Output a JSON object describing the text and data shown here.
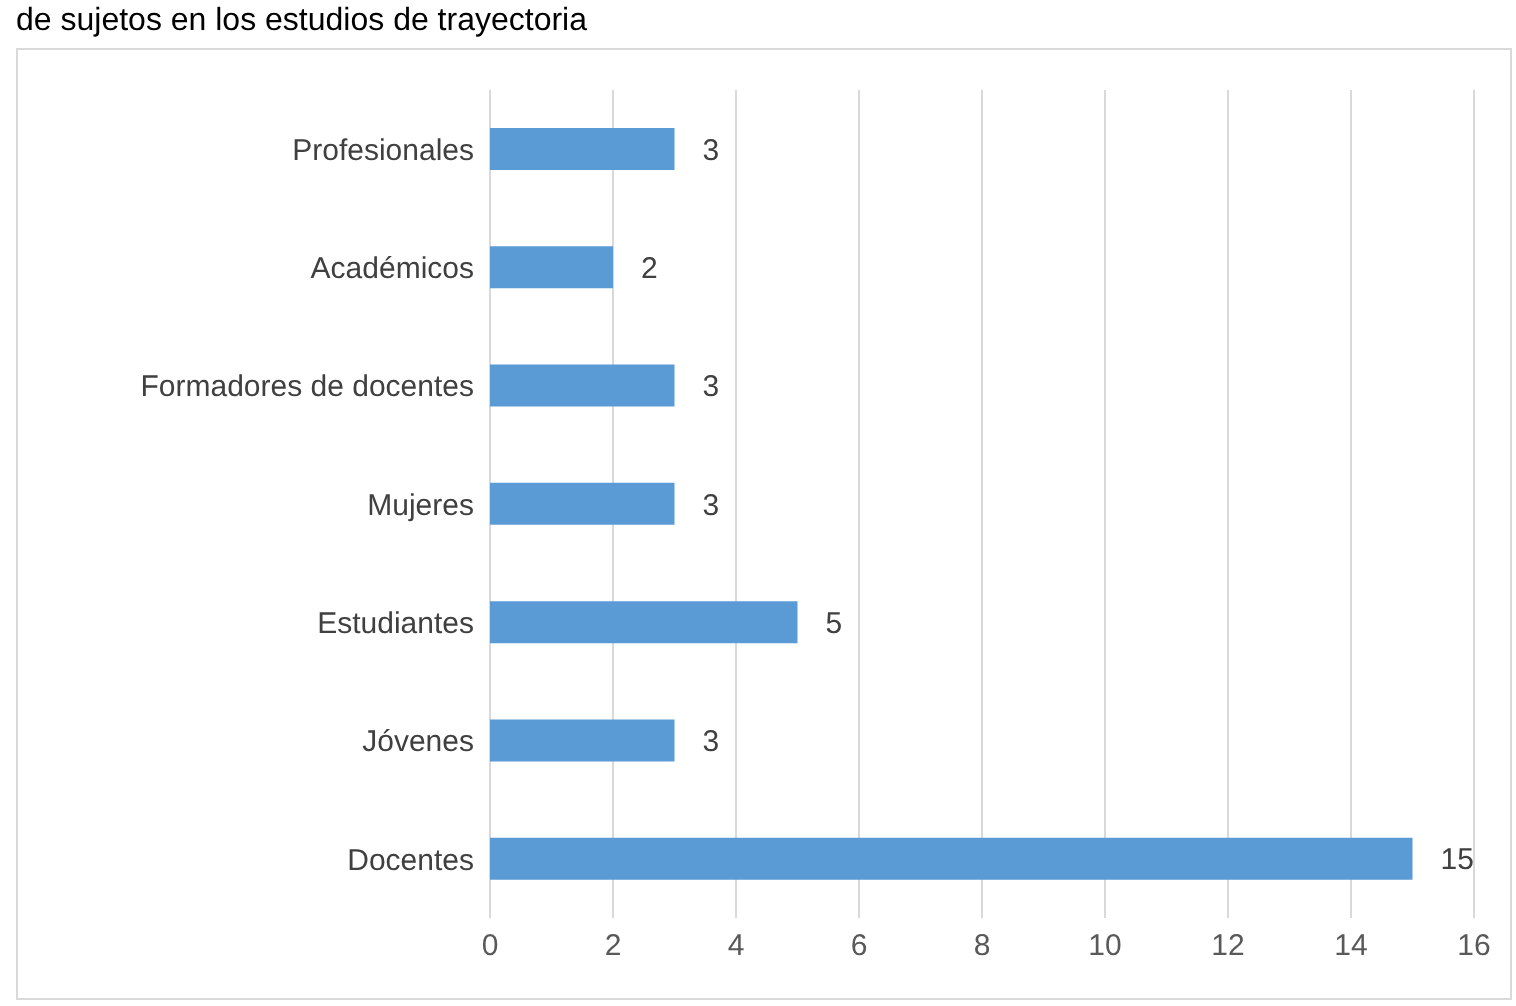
{
  "chart_data": {
    "type": "bar",
    "orientation": "horizontal",
    "title": "de sujetos en los estudios de trayectoria",
    "categories": [
      "Profesionales",
      "Académicos",
      "Formadores de docentes",
      "Mujeres",
      "Estudiantes",
      "Jóvenes",
      "Docentes"
    ],
    "values": [
      3,
      2,
      3,
      3,
      5,
      3,
      15
    ],
    "color": "#5b9bd5",
    "xlim": [
      0,
      16
    ],
    "xticks": [
      0,
      2,
      4,
      6,
      8,
      10,
      12,
      14,
      16
    ],
    "grid": "x",
    "data_labels": true
  }
}
